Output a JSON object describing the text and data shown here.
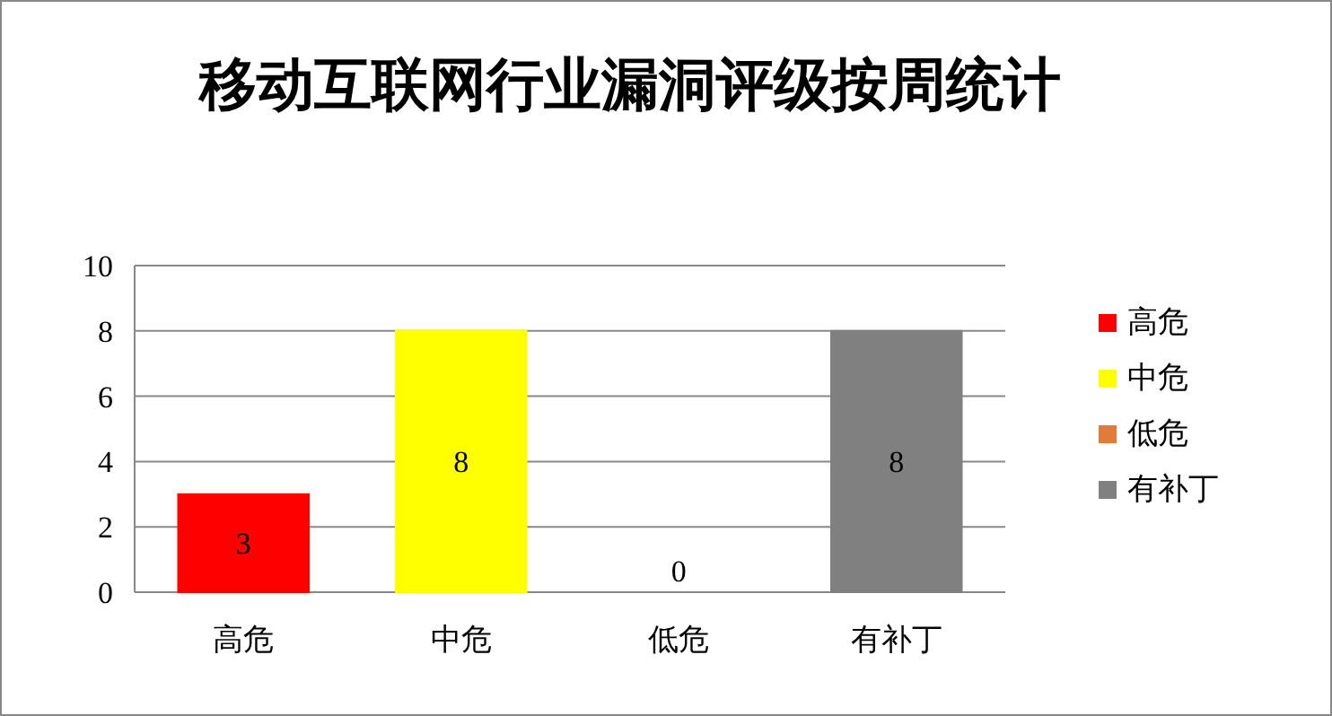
{
  "chart_data": {
    "type": "bar",
    "title": "移动互联网行业漏洞评级按周统计",
    "categories": [
      "高危",
      "中危",
      "低危",
      "有补丁"
    ],
    "series": [
      {
        "name": "高危",
        "color": "#ff0000",
        "values": [
          3,
          null,
          null,
          null
        ]
      },
      {
        "name": "中危",
        "color": "#ffff00",
        "values": [
          null,
          8,
          null,
          null
        ]
      },
      {
        "name": "低危",
        "color": "#e07b39",
        "values": [
          null,
          null,
          0,
          null
        ]
      },
      {
        "name": "有补丁",
        "color": "#808080",
        "values": [
          null,
          null,
          null,
          8
        ]
      }
    ],
    "ylim": [
      0,
      10
    ],
    "yticks": [
      0,
      2,
      4,
      6,
      8,
      10
    ],
    "grid": "y",
    "legend": "right",
    "data_labels": true
  }
}
